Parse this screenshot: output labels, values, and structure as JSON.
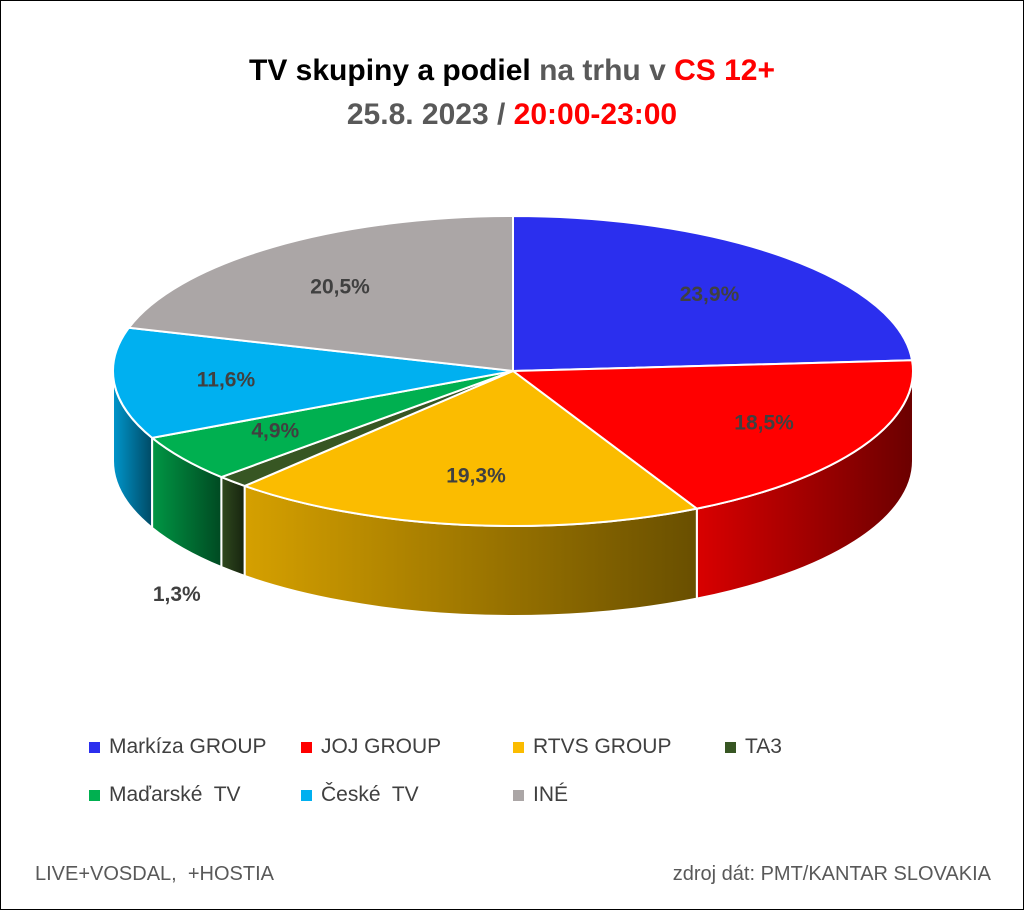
{
  "title": {
    "line1": {
      "part1": "TV skupiny a podiel",
      "part2": " na trhu v",
      "part3": " CS 12+"
    },
    "line2": {
      "part1": "25.8. 2023 /",
      "part2": " 20:00-23:00"
    }
  },
  "chart_data": {
    "type": "pie",
    "style": "3d",
    "labels": [
      "Markíza GROUP",
      "JOJ GROUP",
      "RTVS GROUP",
      "TA3",
      "Maďarské  TV",
      "České  TV",
      "INÉ"
    ],
    "values": [
      23.9,
      18.5,
      19.3,
      1.3,
      4.9,
      11.6,
      20.5
    ],
    "value_labels": [
      "23,9%",
      "18,5%",
      "19,3%",
      "1,3%",
      "4,9%",
      "11,6%",
      "20,5%"
    ],
    "colors": [
      "#2b2fee",
      "#ff0000",
      "#fbbc00",
      "#375623",
      "#00b050",
      "#00b0f0",
      "#aba6a6"
    ],
    "legend_position": "bottom"
  },
  "footer": {
    "left": "LIVE+VOSDAL,  +HOSTIA",
    "right": "zdroj dát: PMT/KANTAR SLOVAKIA"
  }
}
